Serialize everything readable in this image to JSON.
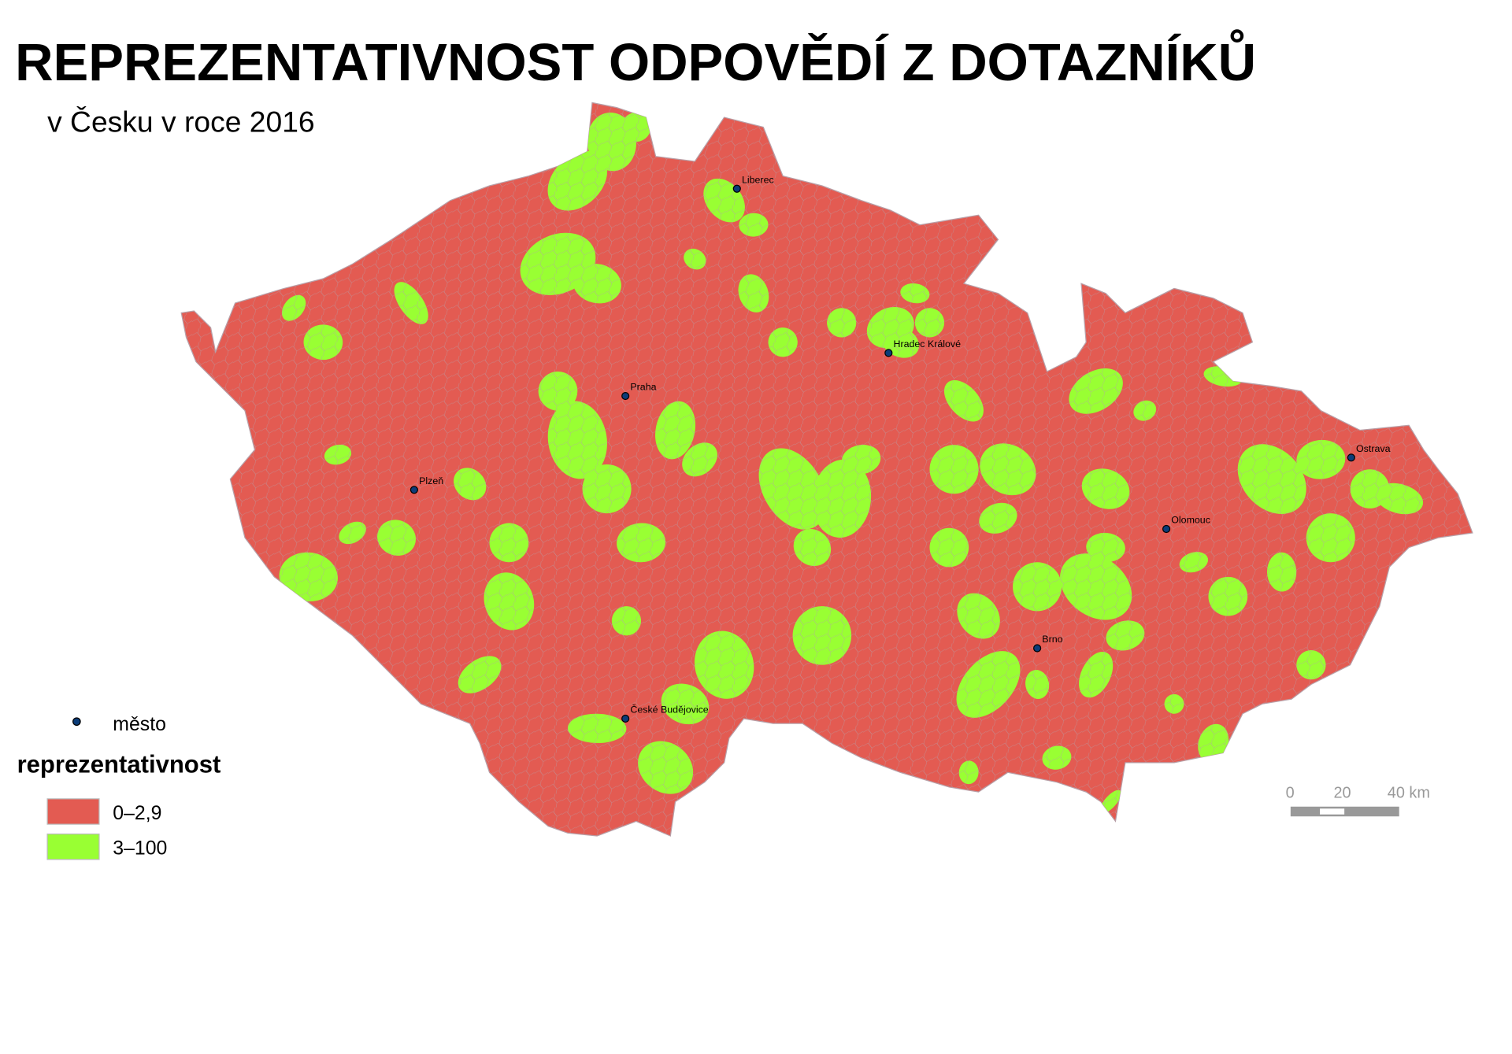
{
  "title": "REPREZENTATIVNOST ODPOVĚDÍ Z DOTAZNÍKŮ",
  "subtitle": "v Česku v roce 2016",
  "cities": [
    "Liberec",
    "Hradec Králové",
    "Praha",
    "Plzeň",
    "Ostrava",
    "Olomouc",
    "Brno",
    "České Budějovice"
  ],
  "legend": {
    "city_label": "město",
    "title": "reprezentativnost",
    "classes": [
      {
        "label": "0–2,9",
        "color": "#E35B52"
      },
      {
        "label": "3–100",
        "color": "#99FF33"
      }
    ]
  },
  "scale_bar": {
    "ticks": [
      "0",
      "20",
      "40 km"
    ]
  },
  "colors": {
    "city_dot": "#0B3C78",
    "boundary": "#A0A0B0"
  }
}
